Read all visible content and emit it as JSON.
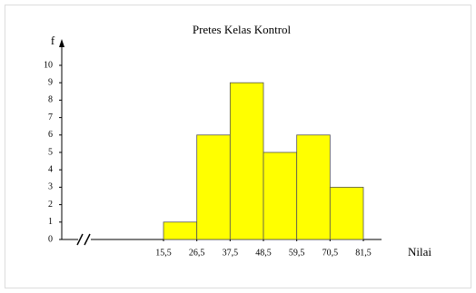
{
  "chart_data": {
    "type": "histogram",
    "title": "Pretes Kelas Kontrol",
    "y_label": "f",
    "x_label": "Nilai",
    "bins": [
      15.5,
      26.5,
      37.5,
      48.5,
      59.5,
      70.5,
      81.5
    ],
    "values": [
      1,
      6,
      9,
      5,
      6,
      3
    ],
    "color": "#ffff00",
    "xticks": [
      {
        "value": 15.5,
        "label": "15,5"
      },
      {
        "value": 26.5,
        "label": "26,5"
      },
      {
        "value": 37.5,
        "label": "37,5"
      },
      {
        "value": 48.5,
        "label": "48,5"
      },
      {
        "value": 59.5,
        "label": "59,5"
      },
      {
        "value": 70.5,
        "label": "70,5"
      },
      {
        "value": 81.5,
        "label": "81,5"
      }
    ],
    "ylim": [
      0,
      10
    ],
    "yticks": [
      0,
      1,
      2,
      3,
      4,
      5,
      6,
      7,
      8,
      9,
      10
    ]
  }
}
